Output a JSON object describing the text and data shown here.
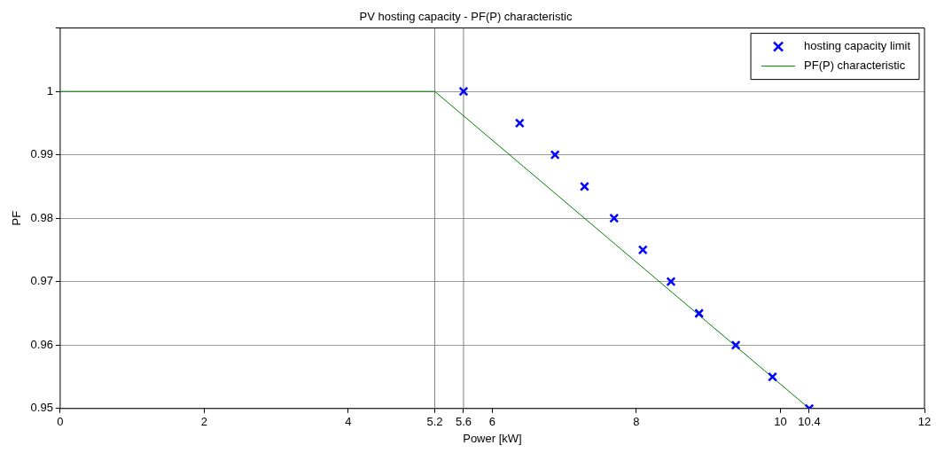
{
  "chart_data": {
    "type": "line",
    "title": "PV hosting capacity - PF(P) characteristic",
    "xlabel": "Power [kW]",
    "ylabel": "PF",
    "xlim": [
      0,
      12
    ],
    "xticks": [
      0,
      2,
      4,
      5.2,
      5.6,
      6,
      8,
      10,
      10.4,
      12
    ],
    "ylim": [
      0.95,
      1.01
    ],
    "yticks": [
      0.95,
      0.96,
      0.97,
      0.98,
      0.99,
      1,
      {
        "value": 1.01,
        "label": null
      }
    ],
    "grid": "y",
    "legend": "top right",
    "series": [
      {
        "name": "hosting capacity limit",
        "type": "scatter",
        "marker": "cross",
        "color": "#0000ff",
        "x": [
          5.6,
          6.38,
          6.87,
          7.28,
          7.69,
          8.09,
          8.48,
          8.87,
          9.38,
          9.89,
          10.4
        ],
        "values": [
          1,
          0.995,
          0.99,
          0.985,
          0.98,
          0.975,
          0.97,
          0.965,
          0.96,
          0.955,
          0.95
        ]
      },
      {
        "name": "PF(P) characteristic",
        "type": "line",
        "marker": "none",
        "line_style": "solid",
        "color": "#008000",
        "x": [
          0,
          5.2,
          10.4
        ],
        "values": [
          1,
          1,
          0.95
        ]
      }
    ],
    "ref_lines": [
      {
        "axis": "x",
        "value": 5.2,
        "color": "#808080"
      },
      {
        "axis": "x",
        "value": 5.6,
        "color": "#808080"
      }
    ]
  }
}
